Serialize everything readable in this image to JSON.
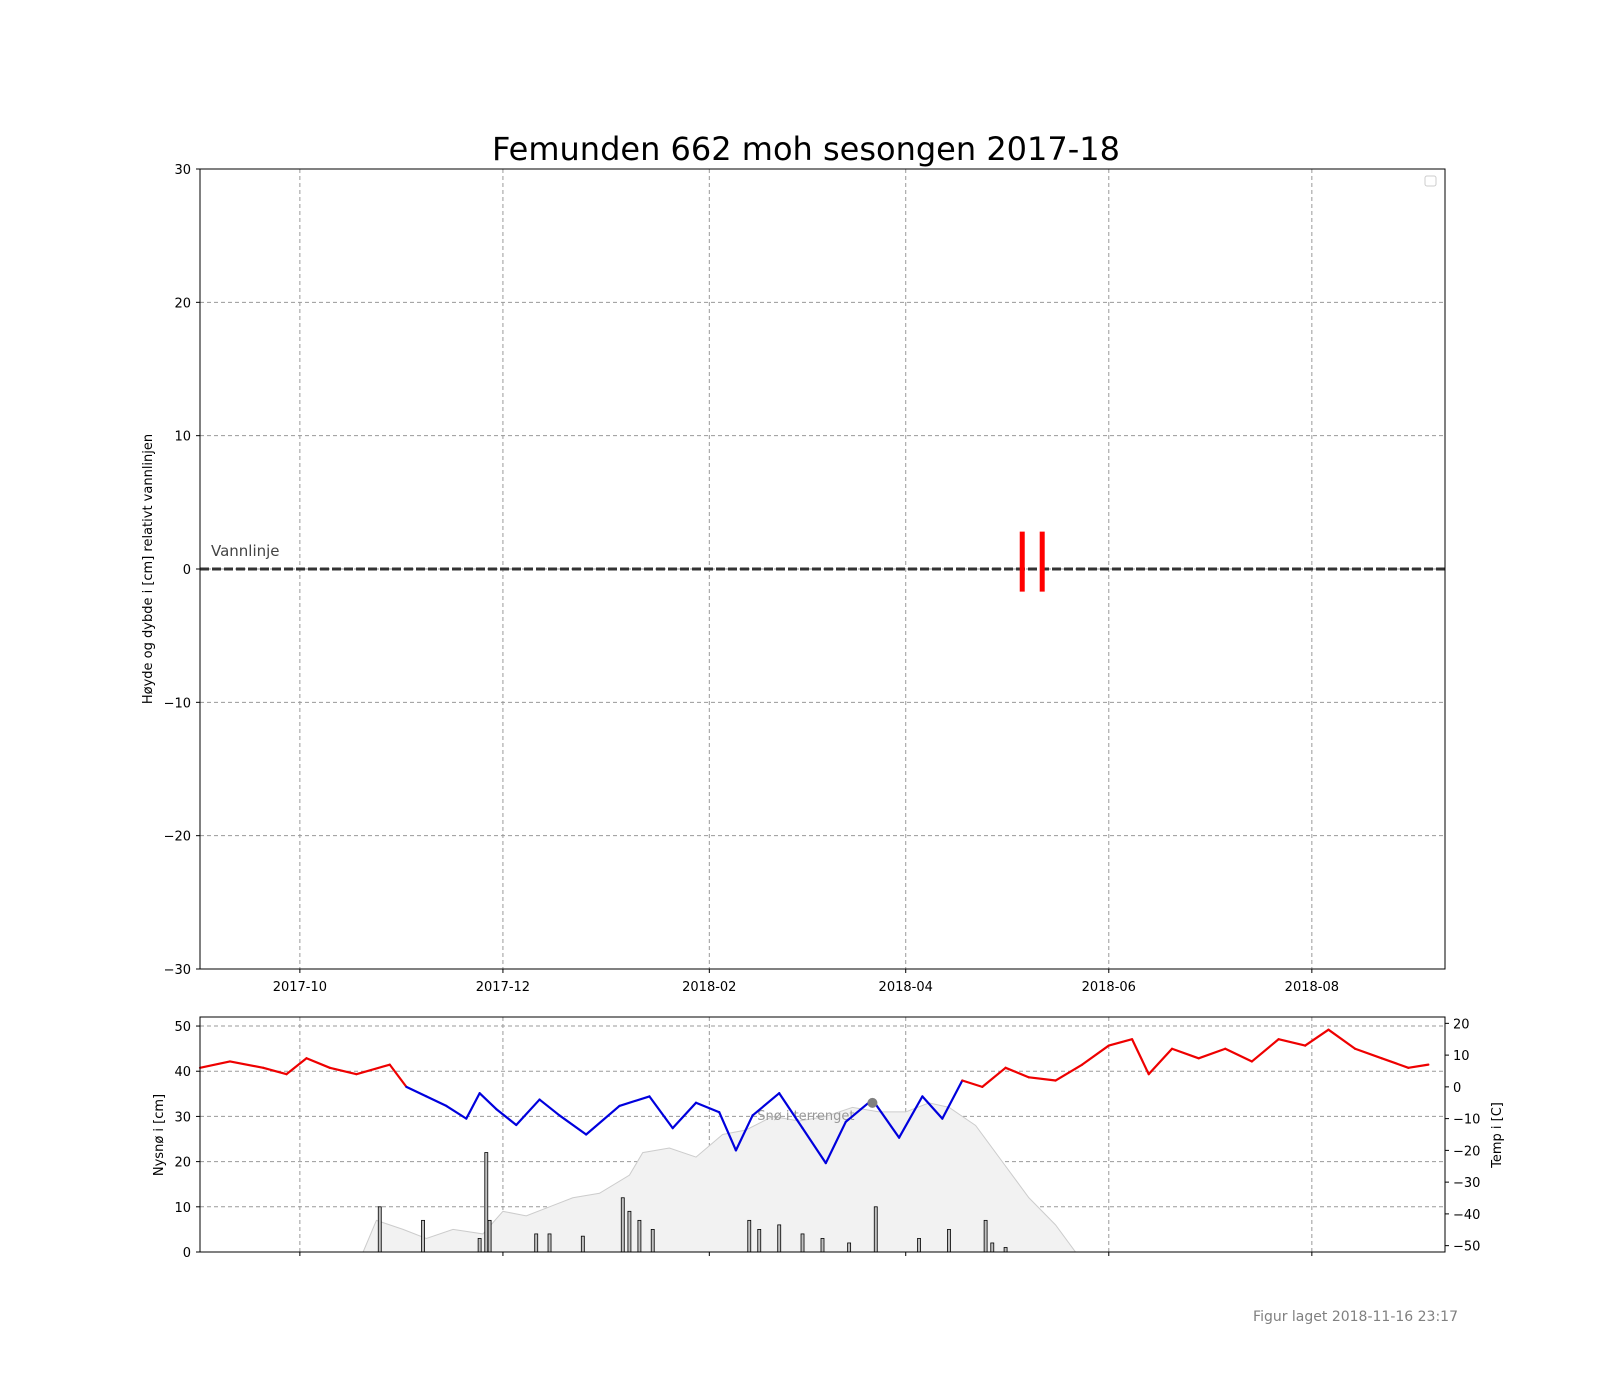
{
  "chart_data": [
    {
      "type": "line",
      "title": "Femunden 662 moh sesongen 2017-18",
      "ylabel": "Høyde og dybde i [cm] relativt vannlinjen",
      "ylim": [
        -30,
        30
      ],
      "yticks": [
        30,
        20,
        10,
        0,
        -10,
        -20,
        -30
      ],
      "ytick_labels": [
        "30",
        "20",
        "10",
        "0",
        "−10",
        "−20",
        "−30"
      ],
      "xlim": [
        "2017-09-01",
        "2018-09-10"
      ],
      "xticks": [
        "2017-10-01",
        "2017-12-01",
        "2018-02-01",
        "2018-04-01",
        "2018-06-01",
        "2018-08-01"
      ],
      "xtick_labels": [
        "2017-10",
        "2017-12",
        "2018-02",
        "2018-04",
        "2018-06",
        "2018-08"
      ],
      "grid": true,
      "legend": "top-right",
      "waterline": {
        "label": "Vannlinje",
        "y": 0,
        "color": "#333333"
      },
      "ice_markers": [
        {
          "x": "2018-05-06",
          "y": [
            -1.7,
            2.8
          ],
          "color": "#ff0000"
        },
        {
          "x": "2018-05-12",
          "y": [
            -1.7,
            2.8
          ],
          "color": "#ff0000"
        }
      ]
    },
    {
      "type": "combo",
      "ylabel": "Nysnø i [cm]",
      "ylim": [
        0,
        52
      ],
      "yticks": [
        0,
        10,
        20,
        30,
        40,
        50
      ],
      "y2label": "Temp i [C]",
      "y2lim": [
        -52,
        22
      ],
      "y2ticks": [
        20,
        10,
        0,
        -10,
        -20,
        -30,
        -40,
        -50
      ],
      "y2tick_labels": [
        "20",
        "10",
        "0",
        "−10",
        "−20",
        "−30",
        "−40",
        "−50"
      ],
      "grid": true,
      "snow_depth_label": "Snø i terrenget",
      "snow_depth_color": "#f2f2f2",
      "snow_depth": [
        [
          "2017-10-20",
          0
        ],
        [
          "2017-10-24",
          7
        ],
        [
          "2017-11-01",
          5
        ],
        [
          "2017-11-08",
          3
        ],
        [
          "2017-11-16",
          5
        ],
        [
          "2017-11-25",
          4
        ],
        [
          "2017-12-01",
          9
        ],
        [
          "2017-12-08",
          8
        ],
        [
          "2017-12-15",
          10
        ],
        [
          "2017-12-22",
          12
        ],
        [
          "2017-12-30",
          13
        ],
        [
          "2018-01-08",
          17
        ],
        [
          "2018-01-12",
          22
        ],
        [
          "2018-01-20",
          23
        ],
        [
          "2018-01-28",
          21
        ],
        [
          "2018-02-05",
          26
        ],
        [
          "2018-02-12",
          27
        ],
        [
          "2018-02-20",
          30
        ],
        [
          "2018-02-28",
          29
        ],
        [
          "2018-03-08",
          30
        ],
        [
          "2018-03-16",
          32
        ],
        [
          "2018-03-24",
          31
        ],
        [
          "2018-04-01",
          31
        ],
        [
          "2018-04-08",
          33
        ],
        [
          "2018-04-14",
          32
        ],
        [
          "2018-04-22",
          28
        ],
        [
          "2018-04-30",
          20
        ],
        [
          "2018-05-08",
          12
        ],
        [
          "2018-05-16",
          6
        ],
        [
          "2018-05-22",
          0
        ]
      ],
      "snow_point": {
        "x": "2018-03-22",
        "y": 33,
        "color": "#808080"
      },
      "new_snow_bars": [
        [
          "2017-10-25",
          10
        ],
        [
          "2017-11-07",
          7
        ],
        [
          "2017-11-24",
          3
        ],
        [
          "2017-11-26",
          22
        ],
        [
          "2017-11-27",
          7
        ],
        [
          "2017-12-11",
          4
        ],
        [
          "2017-12-15",
          4
        ],
        [
          "2017-12-25",
          3.5
        ],
        [
          "2018-01-06",
          12
        ],
        [
          "2018-01-08",
          9
        ],
        [
          "2018-01-11",
          7
        ],
        [
          "2018-01-15",
          5
        ],
        [
          "2018-02-13",
          7
        ],
        [
          "2018-02-16",
          5
        ],
        [
          "2018-02-22",
          6
        ],
        [
          "2018-03-01",
          4
        ],
        [
          "2018-03-07",
          3
        ],
        [
          "2018-03-15",
          2
        ],
        [
          "2018-03-23",
          10
        ],
        [
          "2018-04-05",
          3
        ],
        [
          "2018-04-14",
          5
        ],
        [
          "2018-04-25",
          7
        ],
        [
          "2018-04-27",
          2
        ],
        [
          "2018-05-01",
          1
        ]
      ],
      "temperature": {
        "warm_color": "#ee0000",
        "cold_color": "#0000dd",
        "points": [
          [
            "2017-09-01",
            6
          ],
          [
            "2017-09-10",
            8
          ],
          [
            "2017-09-20",
            6
          ],
          [
            "2017-09-27",
            4
          ],
          [
            "2017-10-03",
            9
          ],
          [
            "2017-10-10",
            6
          ],
          [
            "2017-10-18",
            4
          ],
          [
            "2017-10-28",
            7
          ],
          [
            "2017-11-02",
            0
          ],
          [
            "2017-11-08",
            -3
          ],
          [
            "2017-11-14",
            -6
          ],
          [
            "2017-11-20",
            -10
          ],
          [
            "2017-11-24",
            -2
          ],
          [
            "2017-11-29",
            -7
          ],
          [
            "2017-12-05",
            -12
          ],
          [
            "2017-12-12",
            -4
          ],
          [
            "2017-12-18",
            -9
          ],
          [
            "2017-12-26",
            -15
          ],
          [
            "2018-01-05",
            -6
          ],
          [
            "2018-01-14",
            -3
          ],
          [
            "2018-01-21",
            -13
          ],
          [
            "2018-01-28",
            -5
          ],
          [
            "2018-02-04",
            -8
          ],
          [
            "2018-02-09",
            -20
          ],
          [
            "2018-02-14",
            -9
          ],
          [
            "2018-02-22",
            -2
          ],
          [
            "2018-03-01",
            -13
          ],
          [
            "2018-03-08",
            -24
          ],
          [
            "2018-03-14",
            -11
          ],
          [
            "2018-03-22",
            -4
          ],
          [
            "2018-03-30",
            -16
          ],
          [
            "2018-04-06",
            -3
          ],
          [
            "2018-04-12",
            -10
          ],
          [
            "2018-04-18",
            2
          ],
          [
            "2018-04-24",
            0
          ],
          [
            "2018-05-01",
            6
          ],
          [
            "2018-05-08",
            3
          ],
          [
            "2018-05-16",
            2
          ],
          [
            "2018-05-24",
            7
          ],
          [
            "2018-06-01",
            13
          ],
          [
            "2018-06-08",
            15
          ],
          [
            "2018-06-13",
            4
          ],
          [
            "2018-06-20",
            12
          ],
          [
            "2018-06-28",
            9
          ],
          [
            "2018-07-06",
            12
          ],
          [
            "2018-07-14",
            8
          ],
          [
            "2018-07-22",
            15
          ],
          [
            "2018-07-30",
            13
          ],
          [
            "2018-08-06",
            18
          ],
          [
            "2018-08-14",
            12
          ],
          [
            "2018-08-22",
            9
          ],
          [
            "2018-08-30",
            6
          ],
          [
            "2018-09-05",
            7
          ]
        ]
      }
    }
  ],
  "footer": {
    "created_label": "Figur laget 2018-11-16 23:17"
  }
}
